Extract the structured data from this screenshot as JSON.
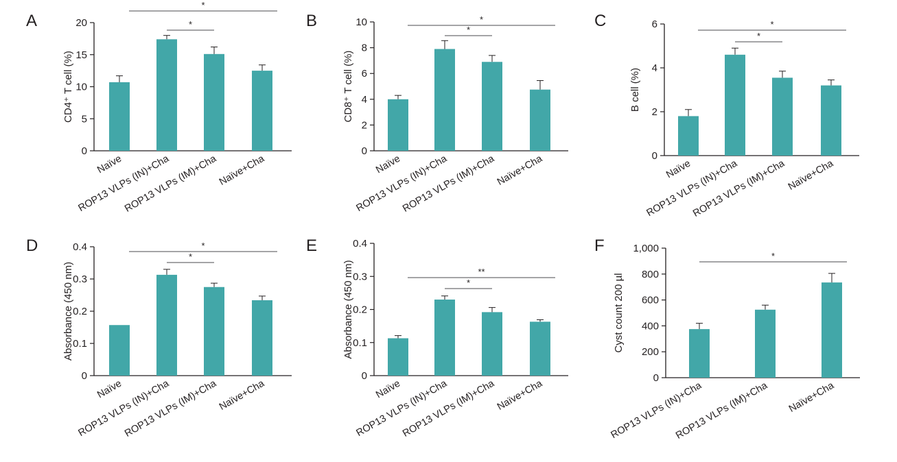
{
  "colors": {
    "bar": "#42a7a8",
    "axis": "#231f20",
    "sig_line": "#6d6e71"
  },
  "chart_data": [
    {
      "panel": "A",
      "type": "bar",
      "ylabel": "CD4⁺ T cell (%)",
      "ylim": [
        0,
        20
      ],
      "yticks": [
        "0",
        "5",
        "10",
        "15",
        "20"
      ],
      "ytick_values": [
        0,
        5,
        10,
        15,
        20
      ],
      "categories": [
        "Naïve",
        "ROP13 VLPs (IN)+Cha",
        "ROP13 VLPs (IM)+Cha",
        "Naïve+Cha"
      ],
      "values": [
        10.7,
        17.4,
        15.1,
        12.5
      ],
      "errors": [
        1.0,
        0.6,
        1.1,
        0.9
      ],
      "significance": [
        {
          "from": 0,
          "to": 3,
          "label": "*"
        },
        {
          "from": 1,
          "to": 2,
          "label": "*"
        }
      ]
    },
    {
      "panel": "B",
      "type": "bar",
      "ylabel": "CD8⁺ T cell (%)",
      "ylim": [
        0,
        10
      ],
      "yticks": [
        "0",
        "2",
        "4",
        "6",
        "8",
        "10"
      ],
      "ytick_values": [
        0,
        2,
        4,
        6,
        8,
        10
      ],
      "categories": [
        "Naïve",
        "ROP13 VLPs (IN)+Cha",
        "ROP13 VLPs (IM)+Cha",
        "Naïve+Cha"
      ],
      "values": [
        4.0,
        7.9,
        6.9,
        4.75
      ],
      "errors": [
        0.3,
        0.65,
        0.5,
        0.7
      ],
      "significance": [
        {
          "from": 0,
          "to": 3,
          "label": "*"
        },
        {
          "from": 1,
          "to": 2,
          "label": "*"
        }
      ]
    },
    {
      "panel": "C",
      "type": "bar",
      "ylabel": "B cell (%)",
      "ylim": [
        0,
        6
      ],
      "yticks": [
        "0",
        "2",
        "4",
        "6"
      ],
      "ytick_values": [
        0,
        2,
        4,
        6
      ],
      "categories": [
        "Naïve",
        "ROP13 VLPs (IN)+Cha",
        "ROP13 VLPs (IM)+Cha",
        "Naïve+Cha"
      ],
      "values": [
        1.8,
        4.6,
        3.55,
        3.2
      ],
      "errors": [
        0.3,
        0.3,
        0.3,
        0.25
      ],
      "significance": [
        {
          "from": 0,
          "to": 3,
          "label": "*"
        },
        {
          "from": 1,
          "to": 2,
          "label": "*"
        }
      ]
    },
    {
      "panel": "D",
      "type": "bar",
      "ylabel": "Absorbance (450 nm)",
      "ylim": [
        0,
        0.4
      ],
      "yticks": [
        "0",
        "0.1",
        "0.2",
        "0.3",
        "0.4"
      ],
      "ytick_values": [
        0,
        0.1,
        0.2,
        0.3,
        0.4
      ],
      "categories": [
        "Naïve",
        "ROP13 VLPs (IN)+Cha",
        "ROP13 VLPs (IM)+Cha",
        "Naïve+Cha"
      ],
      "values": [
        0.157,
        0.313,
        0.275,
        0.234
      ],
      "errors": [
        0,
        0.017,
        0.012,
        0.013
      ],
      "significance": [
        {
          "from": 0,
          "to": 3,
          "label": "*"
        },
        {
          "from": 1,
          "to": 2,
          "label": "*"
        }
      ]
    },
    {
      "panel": "E",
      "type": "bar",
      "ylabel": "Absorbance (450 nm)",
      "ylim": [
        0,
        0.4
      ],
      "yticks": [
        "0",
        "0.1",
        "0.2",
        "0.3",
        "0.4"
      ],
      "ytick_values": [
        0,
        0.1,
        0.2,
        0.3,
        0.4
      ],
      "categories": [
        "Naïve",
        "ROP13 VLPs (IN)+Cha",
        "ROP13 VLPs (IM)+Cha",
        "Naïve+Cha"
      ],
      "values": [
        0.113,
        0.23,
        0.192,
        0.163
      ],
      "errors": [
        0.008,
        0.011,
        0.014,
        0.006
      ],
      "significance": [
        {
          "from": 0,
          "to": 3,
          "label": "**"
        },
        {
          "from": 1,
          "to": 2,
          "label": "*"
        }
      ]
    },
    {
      "panel": "F",
      "type": "bar",
      "ylabel": "Cyst count 200 µl",
      "ylim": [
        0,
        1000
      ],
      "yticks": [
        "0",
        "200",
        "400",
        "600",
        "800",
        "1,000"
      ],
      "ytick_values": [
        0,
        200,
        400,
        600,
        800,
        1000
      ],
      "categories": [
        "ROP13 VLPs (IN)+Cha",
        "ROP13 VLPs (IM)+Cha",
        "Naïve+Cha"
      ],
      "values": [
        375,
        525,
        735
      ],
      "errors": [
        45,
        35,
        70
      ],
      "significance": [
        {
          "from": 0,
          "to": 2,
          "label": "*"
        }
      ]
    }
  ]
}
